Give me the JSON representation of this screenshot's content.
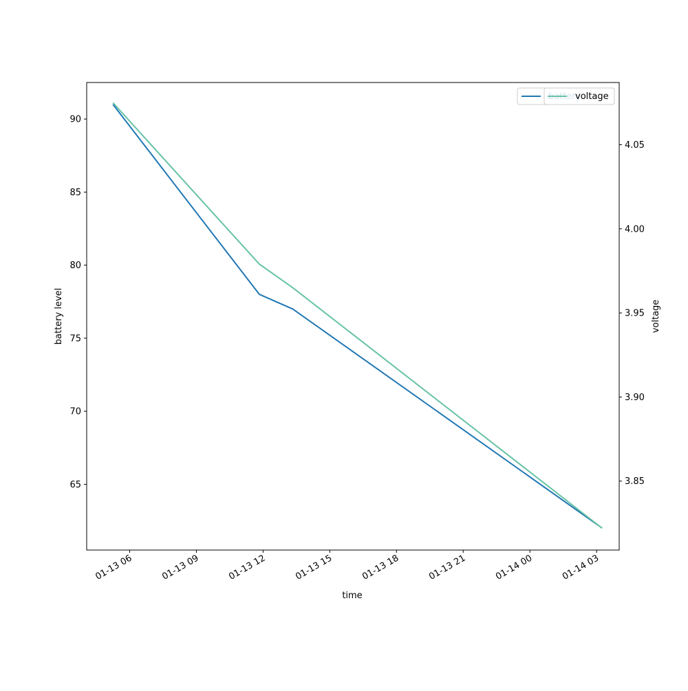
{
  "chart_data": {
    "type": "line",
    "xlabel": "time",
    "ylabel": "battery level",
    "y2label": "voltage",
    "x_ticks": [
      "01-13 06",
      "01-13 09",
      "01-13 12",
      "01-13 15",
      "01-13 18",
      "01-13 21",
      "01-14 00",
      "01-14 03"
    ],
    "y_ticks": [
      "65",
      "70",
      "75",
      "80",
      "85",
      "90"
    ],
    "y2_ticks": [
      "3.85",
      "3.90",
      "3.95",
      "4.00",
      "4.05"
    ],
    "xlim": [
      "2024-01-13 04:04",
      "2024-01-14 04:01"
    ],
    "ylim": [
      60.5,
      92.5
    ],
    "y2lim": [
      3.809,
      4.087
    ],
    "series": [
      {
        "name": "battery",
        "axis": "left",
        "color": "#1f77b4",
        "x": [
          "2024-01-13 05:15",
          "2024-01-13 11:50",
          "2024-01-13 13:20",
          "2024-01-14 03:15"
        ],
        "values": [
          91,
          78,
          77,
          62
        ]
      },
      {
        "name": "voltage",
        "axis": "right",
        "color": "#66c2a5",
        "x": [
          "2024-01-13 05:15",
          "2024-01-13 11:50",
          "2024-01-13 13:20",
          "2024-01-14 03:15"
        ],
        "values": [
          4.075,
          3.979,
          3.965,
          3.822
        ]
      }
    ],
    "legend_left": {
      "entries": [
        "battery"
      ],
      "placement": "top-right"
    },
    "legend_right": {
      "entries": [
        "voltage"
      ],
      "placement": "top-right"
    },
    "grid": false
  }
}
